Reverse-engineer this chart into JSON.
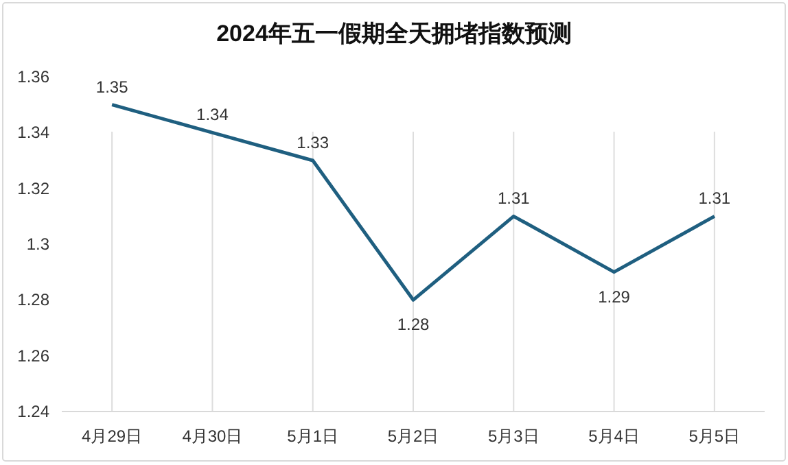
{
  "chart_data": {
    "type": "line",
    "title": "2024年五一假期全天拥堵指数预测",
    "categories": [
      "4月29日",
      "4月30日",
      "5月1日",
      "5月2日",
      "5月3日",
      "5月4日",
      "5月5日"
    ],
    "series": [
      {
        "color": "#1f5f80",
        "values": [
          1.35,
          1.34,
          1.33,
          1.28,
          1.31,
          1.29,
          1.31
        ]
      }
    ],
    "ylim": [
      1.24,
      1.36
    ],
    "yticks": [
      1.24,
      1.26,
      1.28,
      {
        "value": 1.3,
        "label": "1.3"
      },
      1.32,
      1.34,
      1.36
    ],
    "grid": "x",
    "data_labels": true,
    "marker": "none",
    "line_style": "solid"
  }
}
